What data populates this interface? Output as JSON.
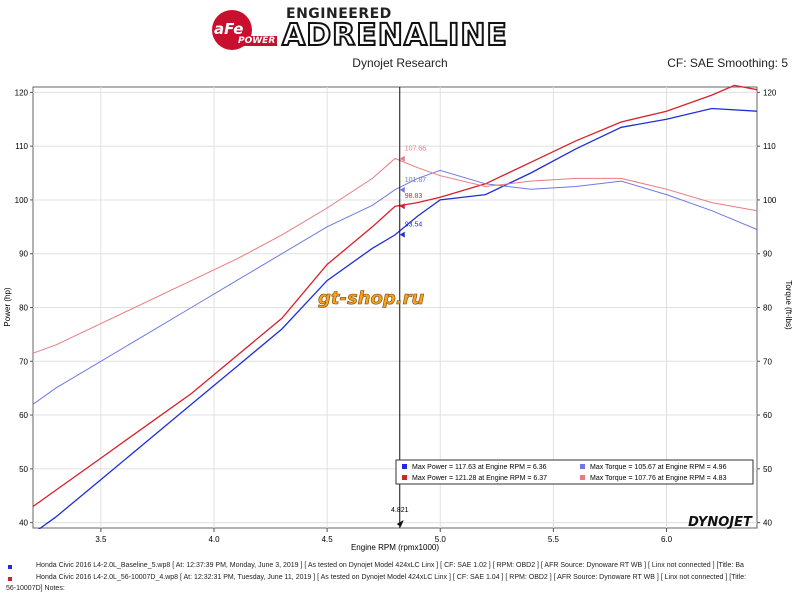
{
  "header": {
    "brand_top": "ENGINEERED",
    "brand_main": "ADRENALINE",
    "logo_text": "aFe",
    "logo_power": "POWER",
    "subtitle": "Dynojet Research",
    "cf_text": "CF: SAE Smoothing: 5"
  },
  "watermark": "gt-shop.ru",
  "dynojet_logo": "DYNOJET",
  "colors": {
    "blue": "#1f2fd8",
    "red": "#d8202a",
    "blue_light": "#6f7ae0",
    "red_light": "#ea7a80"
  },
  "chart_data": {
    "type": "line",
    "xlabel": "Engine RPM (rpmx1000)",
    "ylabel_left": "Power (hp)",
    "ylabel_right": "Torque (ft-lbs)",
    "xlim": [
      3.2,
      6.4
    ],
    "ylim": [
      39,
      121
    ],
    "x_ticks": [
      3.5,
      4.0,
      4.5,
      5.0,
      5.5,
      6.0
    ],
    "x_tick_labels": [
      "3.5",
      "4.0",
      "4.5",
      "5.0",
      "5.5",
      "6.0"
    ],
    "y_ticks": [
      40,
      50,
      60,
      70,
      80,
      90,
      100,
      110,
      120
    ],
    "y_tick_labels": [
      "40",
      "50",
      "60",
      "70",
      "80",
      "90",
      "100",
      "110",
      "120"
    ],
    "grid": true,
    "cursor": {
      "x": 4.821,
      "label": "4.821"
    },
    "cursor_labels": [
      {
        "y": 107.66,
        "text": "107.66",
        "color": "#ea7a80"
      },
      {
        "y": 101.87,
        "text": "101.87",
        "color": "#6f7ae0"
      },
      {
        "y": 98.83,
        "text": "98.83",
        "color": "#d8202a"
      },
      {
        "y": 93.54,
        "text": "93.54",
        "color": "#1f2fd8"
      }
    ],
    "series": [
      {
        "name": "Power",
        "run": "baseline",
        "color": "#1f2fd8",
        "width": 1.3,
        "x": [
          3.2,
          3.3,
          3.5,
          3.7,
          3.9,
          4.1,
          4.3,
          4.5,
          4.7,
          4.8,
          4.9,
          5.0,
          5.2,
          5.4,
          5.6,
          5.8,
          6.0,
          6.2,
          6.4
        ],
        "y": [
          38,
          41,
          48,
          55,
          62,
          69,
          76,
          85,
          91,
          93.5,
          97,
          100,
          101,
          105,
          109.5,
          113.5,
          115,
          117,
          116.5
        ]
      },
      {
        "name": "Power",
        "run": "modified",
        "color": "#d8202a",
        "width": 1.3,
        "x": [
          3.2,
          3.3,
          3.5,
          3.7,
          3.9,
          4.1,
          4.3,
          4.5,
          4.7,
          4.8,
          4.9,
          5.0,
          5.2,
          5.4,
          5.6,
          5.8,
          6.0,
          6.2,
          6.3,
          6.4
        ],
        "y": [
          43,
          46,
          52,
          58,
          64,
          71,
          78,
          88,
          95,
          98.8,
          99.5,
          100.5,
          103,
          107,
          111,
          114.5,
          116.5,
          119.5,
          121.3,
          120.5
        ]
      },
      {
        "name": "Torque",
        "run": "baseline",
        "color": "#6f7ae0",
        "width": 1,
        "x": [
          3.2,
          3.3,
          3.5,
          3.7,
          3.9,
          4.1,
          4.3,
          4.5,
          4.7,
          4.8,
          4.9,
          5.0,
          5.2,
          5.4,
          5.6,
          5.8,
          6.0,
          6.2,
          6.4
        ],
        "y": [
          62,
          65,
          70,
          75,
          80,
          85,
          90,
          95,
          99,
          101.9,
          104,
          105.5,
          103,
          102,
          102.5,
          103.5,
          101,
          98,
          94.5
        ]
      },
      {
        "name": "Torque",
        "run": "modified",
        "color": "#ea7a80",
        "width": 1,
        "x": [
          3.2,
          3.3,
          3.5,
          3.7,
          3.9,
          4.1,
          4.3,
          4.5,
          4.7,
          4.8,
          4.9,
          5.0,
          5.2,
          5.4,
          5.6,
          5.8,
          6.0,
          6.2,
          6.4
        ],
        "y": [
          71.5,
          73,
          77,
          81,
          85,
          89,
          93.5,
          98.5,
          104,
          107.7,
          106,
          104.5,
          102.5,
          103.5,
          104,
          104,
          102,
          99.5,
          98
        ]
      }
    ],
    "legend": {
      "placement": "bottom-right",
      "entries": [
        {
          "color": "#1f2fd8",
          "text": "Max Power = 117.63 at Engine RPM = 6.36"
        },
        {
          "color": "#6f7ae0",
          "text": "Max Torque = 105.67 at Engine RPM = 4.96"
        },
        {
          "color": "#d8202a",
          "text": "Max Power = 121.28 at Engine RPM = 6.37"
        },
        {
          "color": "#ea7a80",
          "text": "Max Torque = 107.76 at Engine RPM = 4.83"
        }
      ]
    }
  },
  "footer": {
    "line1": "Honda Civic 2016 L4-2.0L_Baseline_5.wp8 [ At: 12:37:39 PM, Monday, June 3, 2019 ] [ As tested on Dynojet Model 424xLC Linx ] [ CF: SAE 1.02 ] [ RPM: OBD2 ] [ AFR Source: Dynoware RT WB ] [ Linx not connected ] [Title: Ba",
    "line2": "Honda Civic 2016 L4-2.0L_56-10007D_4.wp8 [ At: 12:32:31 PM, Tuesday, June 11, 2019 ] [ As tested on Dynojet Model 424xLC Linx ] [ CF: SAE 1.04 ] [ RPM: OBD2 ] [ AFR Source: Dynoware RT WB ] [ Linx not connected ] [Title:",
    "line3": "56-10007D] Notes:"
  }
}
